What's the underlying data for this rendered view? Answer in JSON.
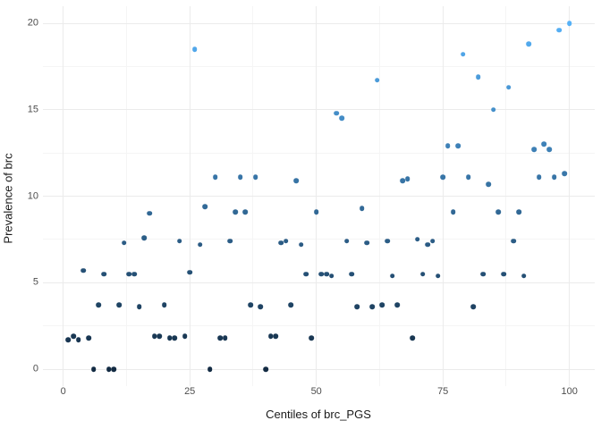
{
  "chart_data": {
    "type": "scatter",
    "title": "",
    "xlabel": "Centiles of brc_PGS",
    "ylabel": "Prevalence of brc",
    "x_ticks": [
      0,
      25,
      50,
      75,
      100
    ],
    "y_ticks": [
      0,
      5,
      10,
      15,
      20
    ],
    "x_minor_ticks": [
      12.5,
      37.5,
      62.5,
      87.5
    ],
    "y_minor_ticks": [
      2.5,
      7.5,
      12.5,
      17.5
    ],
    "xlim": [
      -4,
      105
    ],
    "ylim": [
      -1,
      21
    ],
    "grid": true,
    "legend_position": "none",
    "color_scale": {
      "low": "#132B43",
      "high": "#56B1F7",
      "mapped_to": "y",
      "domain": [
        0,
        20
      ]
    },
    "points": [
      [
        1,
        1.7
      ],
      [
        2,
        1.9
      ],
      [
        3,
        1.7
      ],
      [
        4,
        5.7
      ],
      [
        5,
        1.8
      ],
      [
        6,
        0
      ],
      [
        7,
        3.7
      ],
      [
        8,
        5.5
      ],
      [
        9,
        0
      ],
      [
        10,
        0
      ],
      [
        11,
        3.7
      ],
      [
        12,
        7.3
      ],
      [
        13,
        5.5
      ],
      [
        14,
        5.5
      ],
      [
        15,
        3.6
      ],
      [
        16,
        7.6
      ],
      [
        17,
        9.0
      ],
      [
        18,
        1.9
      ],
      [
        19,
        1.9
      ],
      [
        20,
        3.7
      ],
      [
        21,
        1.8
      ],
      [
        22,
        1.8
      ],
      [
        23,
        7.4
      ],
      [
        24,
        1.9
      ],
      [
        25,
        5.6
      ],
      [
        26,
        18.5
      ],
      [
        27,
        7.2
      ],
      [
        28,
        9.4
      ],
      [
        29,
        0
      ],
      [
        30,
        11.1
      ],
      [
        31,
        1.8
      ],
      [
        32,
        1.8
      ],
      [
        33,
        7.4
      ],
      [
        34,
        9.1
      ],
      [
        35,
        11.1
      ],
      [
        36,
        9.1
      ],
      [
        37,
        3.7
      ],
      [
        38,
        11.1
      ],
      [
        39,
        3.6
      ],
      [
        40,
        0
      ],
      [
        41,
        1.9
      ],
      [
        42,
        1.9
      ],
      [
        43,
        7.3
      ],
      [
        44,
        7.4
      ],
      [
        45,
        3.7
      ],
      [
        46,
        10.9
      ],
      [
        47,
        7.2
      ],
      [
        48,
        5.5
      ],
      [
        49,
        1.8
      ],
      [
        50,
        9.1
      ],
      [
        51,
        5.5
      ],
      [
        52,
        5.5
      ],
      [
        53,
        5.4
      ],
      [
        54,
        14.8
      ],
      [
        55,
        14.5
      ],
      [
        56,
        7.4
      ],
      [
        57,
        5.5
      ],
      [
        58,
        3.6
      ],
      [
        59,
        9.3
      ],
      [
        60,
        7.3
      ],
      [
        61,
        3.6
      ],
      [
        62,
        16.7
      ],
      [
        63,
        3.7
      ],
      [
        64,
        7.4
      ],
      [
        65,
        5.4
      ],
      [
        66,
        3.7
      ],
      [
        67,
        10.9
      ],
      [
        68,
        11.0
      ],
      [
        69,
        1.8
      ],
      [
        70,
        7.5
      ],
      [
        71,
        5.5
      ],
      [
        72,
        7.2
      ],
      [
        73,
        7.4
      ],
      [
        74,
        5.4
      ],
      [
        75,
        11.1
      ],
      [
        76,
        12.9
      ],
      [
        77,
        9.1
      ],
      [
        78,
        12.9
      ],
      [
        79,
        18.2
      ],
      [
        80,
        11.1
      ],
      [
        81,
        3.6
      ],
      [
        82,
        16.9
      ],
      [
        83,
        5.5
      ],
      [
        84,
        10.7
      ],
      [
        85,
        15.0
      ],
      [
        86,
        9.1
      ],
      [
        87,
        5.5
      ],
      [
        88,
        16.3
      ],
      [
        89,
        7.4
      ],
      [
        90,
        9.1
      ],
      [
        91,
        5.4
      ],
      [
        92,
        18.8
      ],
      [
        93,
        12.7
      ],
      [
        94,
        11.1
      ],
      [
        95,
        13.0
      ],
      [
        96,
        12.7
      ],
      [
        97,
        11.1
      ],
      [
        98,
        19.6
      ],
      [
        99,
        11.3
      ],
      [
        100,
        20.0
      ]
    ]
  },
  "style": {
    "background": "#ffffff",
    "major_grid_color": "#ebebeb",
    "minor_grid_color": "#f5f5f5",
    "tick_label_color": "#4d4d4d",
    "axis_title_color": "#1a1a1a"
  }
}
